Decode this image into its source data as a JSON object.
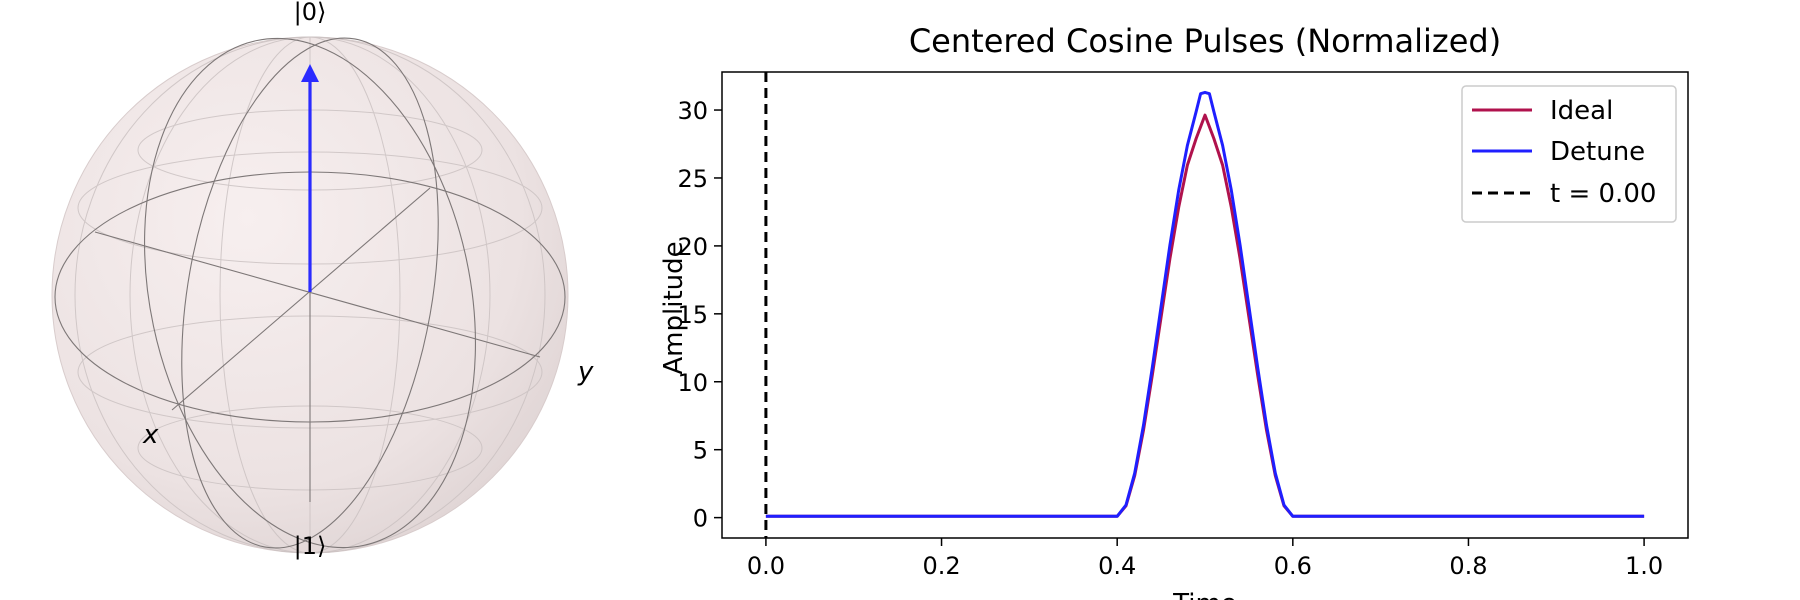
{
  "bloch": {
    "label_zero": "|0⟩",
    "label_one": "|1⟩",
    "label_x": "x",
    "label_y": "y",
    "vector_color": "#2b2bff",
    "sphere_color": "#f2e8e8",
    "state": "|0⟩"
  },
  "chart_data": {
    "type": "line",
    "title": "Centered Cosine Pulses (Normalized)",
    "xlabel": "Time",
    "ylabel": "Amplitude",
    "xlim": [
      -0.05,
      1.05
    ],
    "ylim": [
      -1.5,
      32.8
    ],
    "xticks": [
      0.0,
      0.2,
      0.4,
      0.6,
      0.8,
      1.0
    ],
    "xtick_labels": [
      "0.0",
      "0.2",
      "0.4",
      "0.6",
      "0.8",
      "1.0"
    ],
    "yticks": [
      0,
      5,
      10,
      15,
      20,
      25,
      30
    ],
    "ytick_labels": [
      "0",
      "5",
      "10",
      "15",
      "20",
      "25",
      "30"
    ],
    "grid": false,
    "legend_position": "top-right",
    "series": [
      {
        "name": "Ideal",
        "color": "#b0124d",
        "style": "solid",
        "x": [
          0.0,
          0.39,
          0.4,
          0.41,
          0.42,
          0.43,
          0.44,
          0.45,
          0.46,
          0.47,
          0.48,
          0.49,
          0.5,
          0.51,
          0.52,
          0.53,
          0.54,
          0.55,
          0.56,
          0.57,
          0.58,
          0.59,
          0.6,
          0.61,
          1.0
        ],
        "y": [
          0.1,
          0.1,
          0.1,
          0.87,
          3.09,
          6.44,
          10.48,
          14.77,
          19.06,
          22.85,
          25.95,
          27.91,
          29.63,
          27.91,
          25.95,
          22.85,
          19.06,
          14.77,
          10.48,
          6.44,
          3.09,
          0.87,
          0.1,
          0.1,
          0.1
        ]
      },
      {
        "name": "Detune",
        "color": "#1f1fff",
        "style": "solid",
        "x": [
          0.0,
          0.39,
          0.4,
          0.41,
          0.42,
          0.43,
          0.44,
          0.45,
          0.46,
          0.47,
          0.48,
          0.49,
          0.495,
          0.5,
          0.505,
          0.51,
          0.52,
          0.53,
          0.54,
          0.55,
          0.56,
          0.57,
          0.58,
          0.59,
          0.6,
          0.61,
          1.0
        ],
        "y": [
          0.1,
          0.1,
          0.1,
          0.93,
          3.27,
          6.8,
          11.04,
          15.55,
          20.05,
          24.1,
          27.4,
          29.9,
          31.2,
          31.3,
          31.2,
          29.9,
          27.4,
          24.1,
          20.05,
          15.55,
          11.04,
          6.8,
          3.27,
          0.93,
          0.1,
          0.1,
          0.1
        ]
      },
      {
        "name": "t = 0.00",
        "color": "#000000",
        "style": "dashed",
        "vline_x": 0.0
      }
    ]
  }
}
